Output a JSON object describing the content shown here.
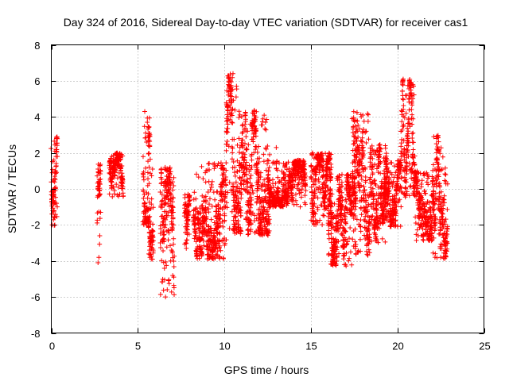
{
  "chart_data": {
    "type": "scatter",
    "title": "Day 324 of 2016, Sidereal Day-to-day VTEC variation (SDTVAR) for receiver cas1",
    "xlabel": "GPS time / hours",
    "ylabel": "SDTVAR / TECUs",
    "xlim": [
      0,
      25
    ],
    "ylim": [
      -8,
      8
    ],
    "xticks": [
      0,
      5,
      10,
      15,
      20,
      25
    ],
    "yticks": [
      -8,
      -6,
      -4,
      -2,
      0,
      2,
      4,
      6,
      8
    ],
    "grid": true,
    "marker": "plus",
    "color": "#ff0000",
    "clusters": [
      {
        "x": [
          0.0,
          0.35
        ],
        "y": [
          -2.1,
          2.9
        ]
      },
      {
        "x": [
          2.65,
          2.85
        ],
        "y": [
          -4.2,
          1.5
        ]
      },
      {
        "x": [
          3.35,
          4.15
        ],
        "y": [
          -0.5,
          2.0
        ]
      },
      {
        "x": [
          5.3,
          5.7
        ],
        "y": [
          -2.0,
          4.3
        ]
      },
      {
        "x": [
          5.6,
          5.9
        ],
        "y": [
          -3.9,
          1.3
        ]
      },
      {
        "x": [
          6.3,
          7.1
        ],
        "y": [
          -6.1,
          1.2
        ]
      },
      {
        "x": [
          7.7,
          8.0
        ],
        "y": [
          -3.4,
          -0.2
        ]
      },
      {
        "x": [
          8.2,
          10.1
        ],
        "y": [
          -3.9,
          1.5
        ]
      },
      {
        "x": [
          10.1,
          11.0
        ],
        "y": [
          -2.5,
          6.5
        ]
      },
      {
        "x": [
          11.0,
          12.6
        ],
        "y": [
          -2.6,
          4.4
        ]
      },
      {
        "x": [
          12.5,
          14.7
        ],
        "y": [
          -1.0,
          1.6
        ]
      },
      {
        "x": [
          15.0,
          16.2
        ],
        "y": [
          -2.0,
          2.0
        ]
      },
      {
        "x": [
          16.0,
          17.6
        ],
        "y": [
          -4.3,
          0.8
        ]
      },
      {
        "x": [
          17.4,
          18.4
        ],
        "y": [
          -3.7,
          4.3
        ]
      },
      {
        "x": [
          18.4,
          19.4
        ],
        "y": [
          -3.0,
          2.5
        ]
      },
      {
        "x": [
          19.2,
          20.2
        ],
        "y": [
          -2.1,
          1.6
        ]
      },
      {
        "x": [
          20.2,
          21.0
        ],
        "y": [
          -0.5,
          6.1
        ]
      },
      {
        "x": [
          21.0,
          22.0
        ],
        "y": [
          -2.9,
          1.0
        ]
      },
      {
        "x": [
          22.0,
          22.9
        ],
        "y": [
          -3.9,
          3.0
        ]
      }
    ],
    "points": [
      [
        0.05,
        -2.0
      ],
      [
        0.1,
        -1.2
      ],
      [
        0.1,
        0.5
      ],
      [
        0.15,
        1.6
      ],
      [
        0.2,
        2.1
      ],
      [
        0.25,
        1.0
      ],
      [
        0.3,
        2.8
      ],
      [
        0.3,
        -0.8
      ],
      [
        0.35,
        1.8
      ],
      [
        0.2,
        -1.6
      ],
      [
        0.05,
        0.9
      ],
      [
        0.15,
        -0.3
      ],
      [
        2.7,
        -4.1
      ],
      [
        2.75,
        -3.8
      ],
      [
        2.8,
        -2.6
      ],
      [
        2.8,
        1.3
      ],
      [
        2.75,
        0.9
      ],
      [
        2.85,
        -1.3
      ],
      [
        2.7,
        1.1
      ],
      [
        3.5,
        1.8
      ],
      [
        3.6,
        0.1
      ],
      [
        3.8,
        1.4
      ],
      [
        3.95,
        -0.3
      ],
      [
        4.1,
        0.6
      ],
      [
        3.7,
        1.95
      ],
      [
        3.4,
        0.9
      ],
      [
        5.4,
        4.3
      ],
      [
        5.45,
        3.1
      ],
      [
        5.5,
        2.6
      ],
      [
        5.6,
        -1.7
      ],
      [
        5.35,
        0.5
      ],
      [
        5.55,
        3.7
      ],
      [
        5.65,
        1.2
      ],
      [
        5.7,
        -3.8
      ],
      [
        5.8,
        -2.9
      ],
      [
        5.65,
        0.3
      ],
      [
        5.85,
        1.1
      ],
      [
        5.75,
        -1.1
      ],
      [
        6.6,
        -6.0
      ],
      [
        6.7,
        -5.6
      ],
      [
        6.9,
        -4.0
      ],
      [
        7.0,
        -2.2
      ],
      [
        6.5,
        0.2
      ],
      [
        6.8,
        1.1
      ],
      [
        7.05,
        -0.5
      ],
      [
        6.95,
        -3.4
      ],
      [
        7.8,
        -3.3
      ],
      [
        7.9,
        -0.3
      ],
      [
        7.85,
        -2.1
      ],
      [
        8.4,
        -3.6
      ],
      [
        8.7,
        -2.4
      ],
      [
        9.0,
        -1.1
      ],
      [
        9.3,
        0.4
      ],
      [
        9.6,
        1.3
      ],
      [
        9.9,
        -0.6
      ],
      [
        8.9,
        0.9
      ],
      [
        9.5,
        -2.0
      ],
      [
        10.2,
        3.6
      ],
      [
        10.4,
        4.8
      ],
      [
        10.5,
        6.4
      ],
      [
        10.7,
        5.7
      ],
      [
        10.9,
        2.3
      ],
      [
        10.3,
        -2.2
      ],
      [
        10.8,
        -0.9
      ],
      [
        10.6,
        1.2
      ],
      [
        11.2,
        4.1
      ],
      [
        11.5,
        3.6
      ],
      [
        11.8,
        2.2
      ],
      [
        12.1,
        -1.4
      ],
      [
        12.3,
        0.5
      ],
      [
        11.4,
        -2.5
      ],
      [
        12.0,
        1.5
      ],
      [
        11.6,
        0.2
      ],
      [
        12.8,
        0.3
      ],
      [
        13.2,
        -0.8
      ],
      [
        13.5,
        1.2
      ],
      [
        13.9,
        0.1
      ],
      [
        14.3,
        1.5
      ],
      [
        14.6,
        0.8
      ],
      [
        13.0,
        2.3
      ],
      [
        13.7,
        -0.4
      ],
      [
        15.1,
        2.0
      ],
      [
        15.4,
        -0.5
      ],
      [
        15.7,
        1.2
      ],
      [
        16.0,
        -1.9
      ],
      [
        15.3,
        0.8
      ],
      [
        16.3,
        -2.8
      ],
      [
        16.7,
        -1.0
      ],
      [
        17.0,
        -4.2
      ],
      [
        17.3,
        -3.5
      ],
      [
        17.5,
        -0.2
      ],
      [
        16.5,
        0.6
      ],
      [
        16.9,
        -2.2
      ],
      [
        17.6,
        -3.6
      ],
      [
        17.8,
        2.4
      ],
      [
        18.0,
        4.1
      ],
      [
        18.2,
        3.2
      ],
      [
        18.3,
        -1.5
      ],
      [
        17.7,
        0.9
      ],
      [
        18.5,
        -2.9
      ],
      [
        18.7,
        1.9
      ],
      [
        19.0,
        -0.3
      ],
      [
        19.3,
        2.4
      ],
      [
        18.9,
        -1.9
      ],
      [
        19.4,
        1.4
      ],
      [
        19.7,
        -1.5
      ],
      [
        20.0,
        0.3
      ],
      [
        19.6,
        0.9
      ],
      [
        20.3,
        5.9
      ],
      [
        20.5,
        4.2
      ],
      [
        20.6,
        2.8
      ],
      [
        20.8,
        0.6
      ],
      [
        20.4,
        -0.3
      ],
      [
        20.9,
        3.1
      ],
      [
        21.2,
        -2.6
      ],
      [
        21.5,
        -0.8
      ],
      [
        21.8,
        0.7
      ],
      [
        21.4,
        -2.1
      ],
      [
        22.1,
        2.9
      ],
      [
        22.3,
        1.6
      ],
      [
        22.5,
        -3.8
      ],
      [
        22.7,
        -0.6
      ],
      [
        22.8,
        0.4
      ],
      [
        22.4,
        -2.5
      ]
    ]
  }
}
